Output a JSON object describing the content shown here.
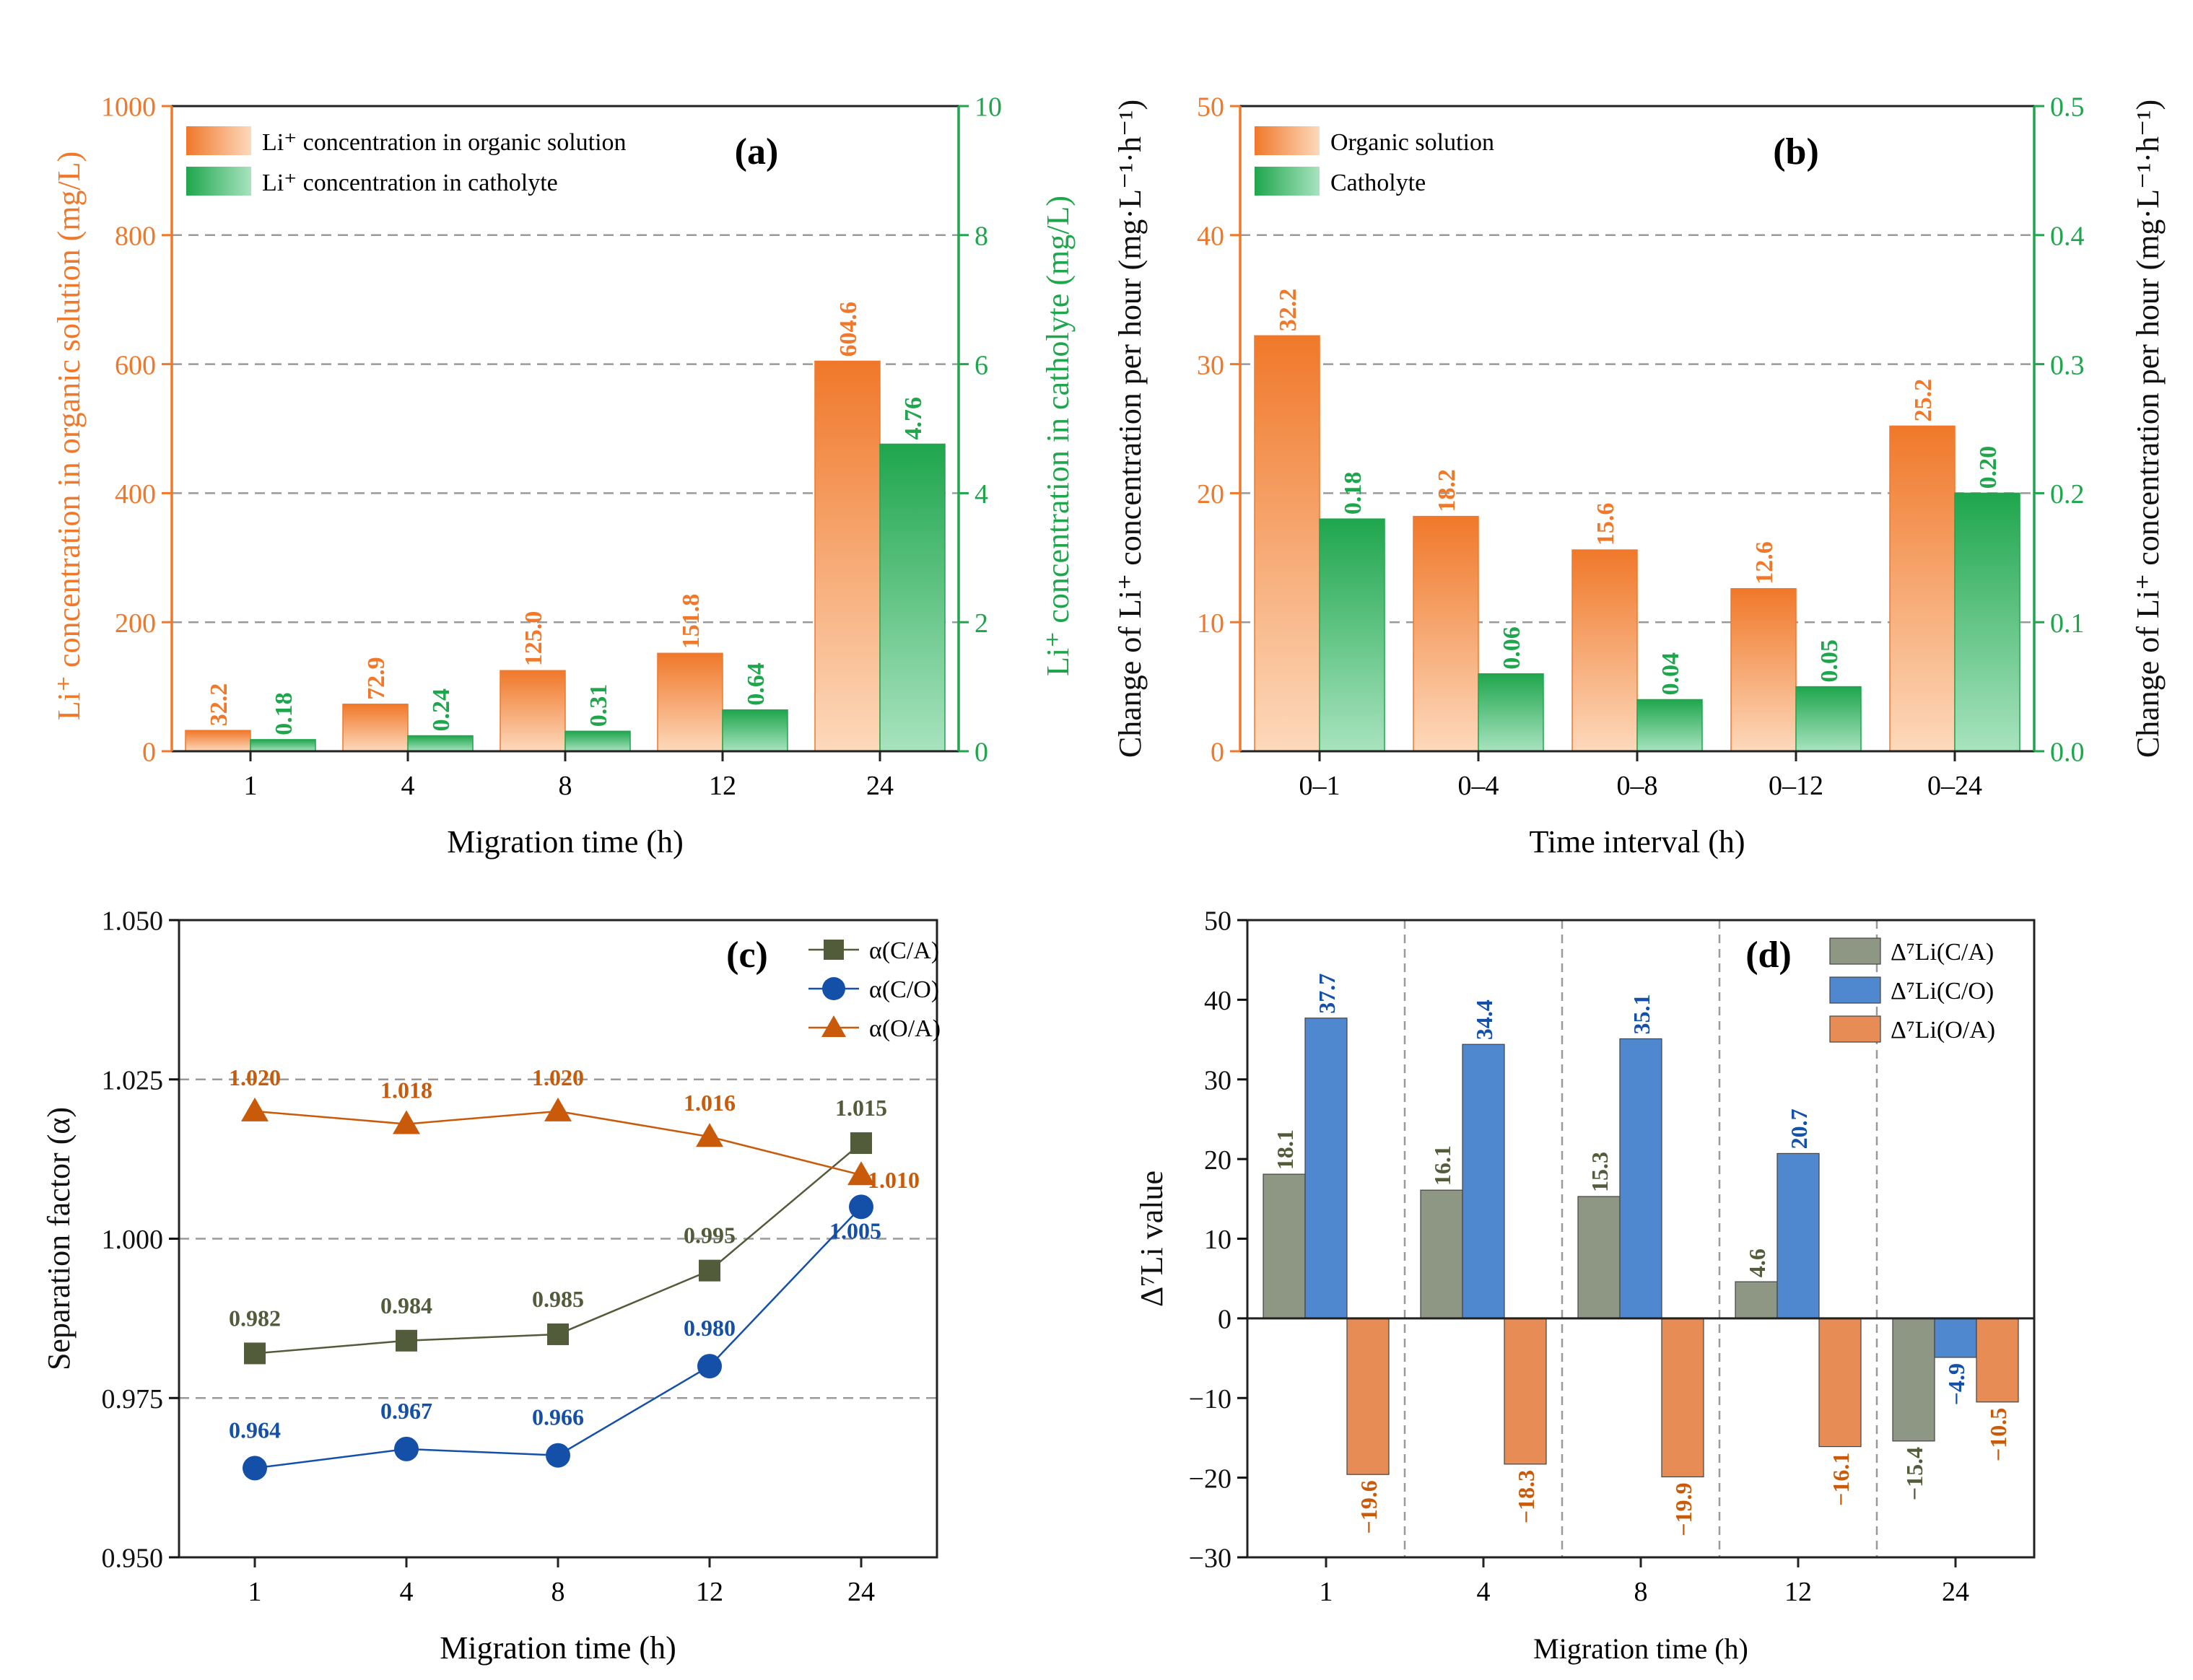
{
  "colors": {
    "orange": "#F0782A",
    "orange_light": "#FDD9BC",
    "green": "#1FA64D",
    "green_light": "#A8E3BF",
    "olive": "#525C3A",
    "blue": "#1550A8",
    "dark_orange": "#C85A0A",
    "gray_bar": "#8E9784",
    "blue_bar": "#4F88CF",
    "salmon_bar": "#E88C55",
    "grid": "#9a9a9a"
  },
  "chart_data": [
    {
      "id": "a",
      "type": "bar",
      "panel_label": "(a)",
      "categories": [
        "1",
        "4",
        "8",
        "12",
        "24"
      ],
      "series": [
        {
          "name": "Li⁺ concentration in organic solution",
          "axis": "left",
          "values": [
            32.2,
            72.9,
            125.0,
            151.8,
            604.6
          ],
          "labels": [
            "32.2",
            "72.9",
            "125.0",
            "151.8",
            "604.6"
          ]
        },
        {
          "name": "Li⁺ concentration in catholyte",
          "axis": "right",
          "values": [
            0.18,
            0.24,
            0.31,
            0.64,
            4.76
          ],
          "labels": [
            "0.18",
            "0.24",
            "0.31",
            "0.64",
            "4.76"
          ]
        }
      ],
      "xlabel": "Migration time (h)",
      "ylabel_left": "Li⁺ concentration in organic solution (mg/L)",
      "ylabel_right": "Li⁺ concentration in catholyte (mg/L)",
      "ylim_left": [
        0,
        1000
      ],
      "yticks_left": [
        "0",
        "200",
        "400",
        "600",
        "800",
        "1000"
      ],
      "ylim_right": [
        0,
        10
      ],
      "yticks_right": [
        "0",
        "2",
        "4",
        "6",
        "8",
        "10"
      ],
      "legend": "top-left",
      "grid": "dashed horizontal"
    },
    {
      "id": "b",
      "type": "bar",
      "panel_label": "(b)",
      "categories": [
        "0–1",
        "0–4",
        "0–8",
        "0–12",
        "0–24"
      ],
      "series": [
        {
          "name": "Organic solution",
          "axis": "left",
          "values": [
            32.2,
            18.2,
            15.6,
            12.6,
            25.2
          ],
          "labels": [
            "32.2",
            "18.2",
            "15.6",
            "12.6",
            "25.2"
          ]
        },
        {
          "name": "Catholyte",
          "axis": "right",
          "values": [
            0.18,
            0.06,
            0.04,
            0.05,
            0.2
          ],
          "labels": [
            "0.18",
            "0.06",
            "0.04",
            "0.05",
            "0.20"
          ]
        }
      ],
      "xlabel": "Time interval (h)",
      "ylabel_left": "Change of Li⁺ concentration per hour (mg·L⁻¹·h⁻¹)",
      "ylabel_right": "Change of Li⁺ concentration per hour (mg·L⁻¹·h⁻¹)",
      "ylim_left": [
        0,
        50
      ],
      "yticks_left": [
        "0",
        "10",
        "20",
        "30",
        "40",
        "50"
      ],
      "ylim_right": [
        0,
        0.5
      ],
      "yticks_right": [
        "0.0",
        "0.1",
        "0.2",
        "0.3",
        "0.4",
        "0.5"
      ],
      "legend": "top-left",
      "grid": "dashed horizontal"
    },
    {
      "id": "c",
      "type": "line",
      "panel_label": "(c)",
      "categories": [
        "1",
        "4",
        "8",
        "12",
        "24"
      ],
      "series": [
        {
          "name": "α(C/A)",
          "marker": "square",
          "values": [
            0.982,
            0.984,
            0.985,
            0.995,
            1.015
          ],
          "labels": [
            "0.982",
            "0.984",
            "0.985",
            "0.995",
            "1.015"
          ]
        },
        {
          "name": "α(C/O)",
          "marker": "circle",
          "values": [
            0.964,
            0.967,
            0.966,
            0.98,
            1.005
          ],
          "labels": [
            "0.964",
            "0.967",
            "0.966",
            "0.980",
            "1.005"
          ]
        },
        {
          "name": "α(O/A)",
          "marker": "triangle",
          "values": [
            1.02,
            1.018,
            1.02,
            1.016,
            1.01
          ],
          "labels": [
            "1.020",
            "1.018",
            "1.020",
            "1.016",
            "1.010"
          ]
        }
      ],
      "xlabel": "Migration time (h)",
      "ylabel": "Separation factor (α)",
      "ylim": [
        0.95,
        1.05
      ],
      "yticks": [
        "0.950",
        "0.975",
        "1.000",
        "1.025",
        "1.050"
      ],
      "legend": "top-right",
      "grid": "dashed horizontal"
    },
    {
      "id": "d",
      "type": "bar",
      "panel_label": "(d)",
      "categories": [
        "1",
        "4",
        "8",
        "12",
        "24"
      ],
      "series": [
        {
          "name": "Δ⁷Li(C/A)",
          "values": [
            18.1,
            16.1,
            15.3,
            4.6,
            -15.4
          ],
          "labels": [
            "18.1",
            "16.1",
            "15.3",
            "4.6",
            "−15.4"
          ]
        },
        {
          "name": "Δ⁷Li(C/O)",
          "values": [
            37.7,
            34.4,
            35.1,
            20.7,
            -4.9
          ],
          "labels": [
            "37.7",
            "34.4",
            "35.1",
            "20.7",
            "−4.9"
          ]
        },
        {
          "name": "Δ⁷Li(O/A)",
          "values": [
            -19.6,
            -18.3,
            -19.9,
            -16.1,
            -10.5
          ],
          "labels": [
            "−19.6",
            "−18.3",
            "−19.9",
            "−16.1",
            "−10.5"
          ]
        }
      ],
      "xlabel": "Migration time (h)",
      "ylabel": "Δ⁷Li value",
      "ylim": [
        -30,
        50
      ],
      "yticks": [
        "−30",
        "−20",
        "−10",
        "0",
        "10",
        "20",
        "30",
        "40",
        "50"
      ],
      "legend": "top-right",
      "grid": "vertical dashed separators"
    }
  ]
}
